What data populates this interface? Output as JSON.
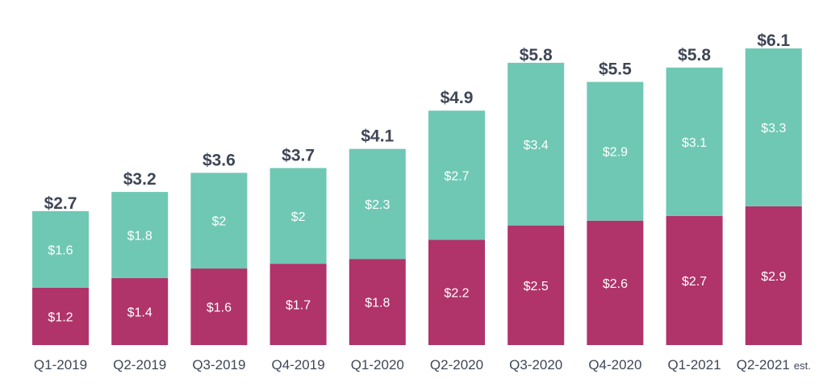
{
  "chart_data": {
    "type": "bar",
    "stacked": true,
    "categories": [
      "Q1-2019",
      "Q2-2019",
      "Q3-2019",
      "Q4-2019",
      "Q1-2020",
      "Q2-2020",
      "Q3-2020",
      "Q4-2020",
      "Q1-2021",
      "Q2-2021"
    ],
    "category_suffixes": [
      "",
      "",
      "",
      "",
      "",
      "",
      "",
      "",
      "",
      "est."
    ],
    "series": [
      {
        "values": [
          1.2,
          1.4,
          1.6,
          1.7,
          1.8,
          2.2,
          2.5,
          2.6,
          2.7,
          2.9
        ],
        "labels": [
          "$1.2",
          "$1.4",
          "$1.6",
          "$1.7",
          "$1.8",
          "$2.2",
          "$2.5",
          "$2.6",
          "$2.7",
          "$2.9"
        ],
        "color": "#b0336a"
      },
      {
        "values": [
          1.6,
          1.8,
          2,
          2,
          2.3,
          2.7,
          3.4,
          2.9,
          3.1,
          3.3
        ],
        "labels": [
          "$1.6",
          "$1.8",
          "$2",
          "$2",
          "$2.3",
          "$2.7",
          "$3.4",
          "$2.9",
          "$3.1",
          "$3.3"
        ],
        "color": "#6fc8b4"
      }
    ],
    "totals": [
      2.7,
      3.2,
      3.6,
      3.7,
      4.1,
      4.9,
      5.8,
      5.5,
      5.8,
      6.1
    ],
    "total_labels": [
      "$2.7",
      "$3.2",
      "$3.6",
      "$3.7",
      "$4.1",
      "$4.9",
      "$5.8",
      "$5.5",
      "$5.8",
      "$6.1"
    ],
    "ylim": [
      0,
      6.1
    ],
    "grid": false,
    "legend": "none",
    "colors": {
      "text": "#3f4656"
    }
  }
}
